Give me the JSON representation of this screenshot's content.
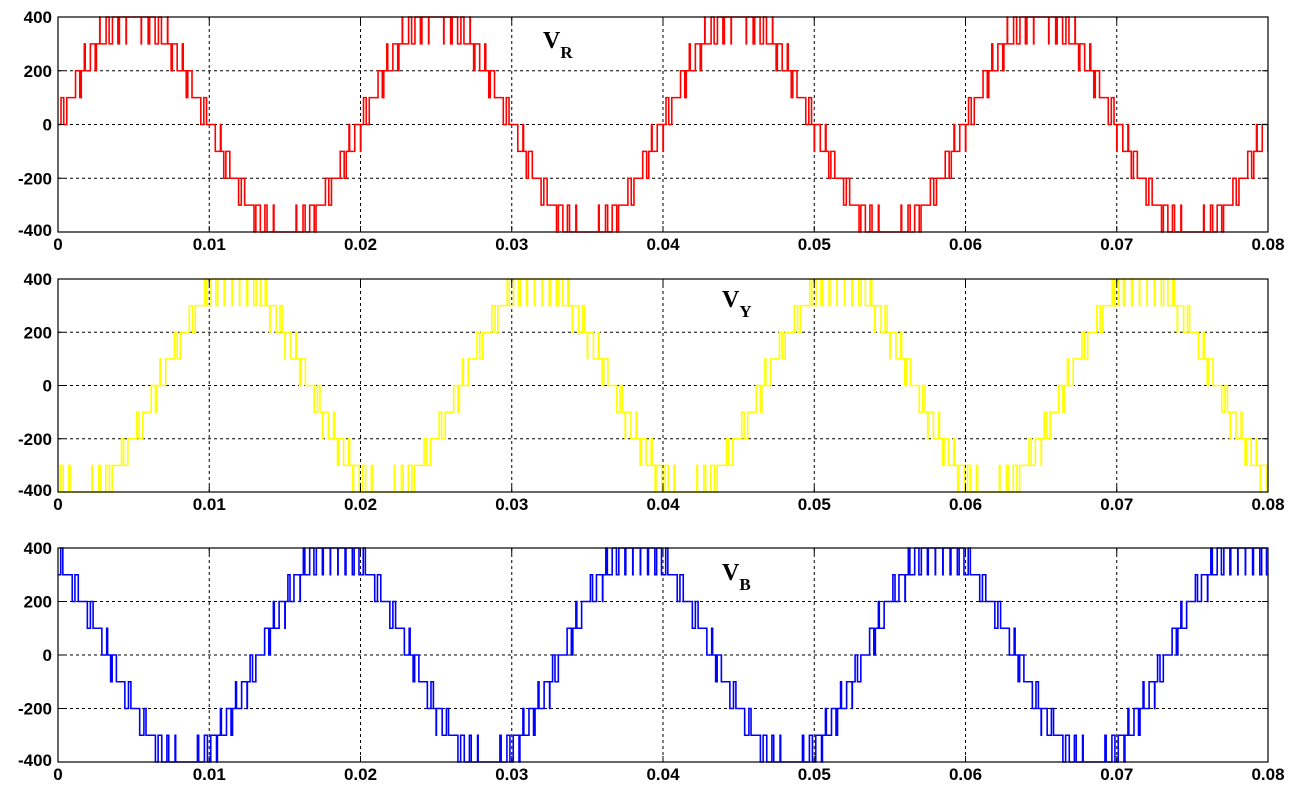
{
  "chart_data": [
    {
      "type": "line",
      "series_label": {
        "main": "V",
        "sub": "R"
      },
      "color": "#ff0000",
      "frequency_hz": 50,
      "phase_deg": 0,
      "step_size": 100,
      "amplitude": 400,
      "xlim": [
        0,
        0.08
      ],
      "ylim": [
        -400,
        400
      ],
      "xticks": [
        "0",
        "0.01",
        "0.02",
        "0.03",
        "0.04",
        "0.05",
        "0.06",
        "0.07",
        "0.08"
      ],
      "yticks": [
        "400",
        "200",
        "0",
        "-200",
        "-400"
      ],
      "grid": true
    },
    {
      "type": "line",
      "series_label": {
        "main": "V",
        "sub": "Y"
      },
      "color": "#ffff00",
      "frequency_hz": 50,
      "phase_deg": -120,
      "step_size": 100,
      "amplitude": 400,
      "xlim": [
        0,
        0.08
      ],
      "ylim": [
        -400,
        400
      ],
      "xticks": [
        "0",
        "0.01",
        "0.02",
        "0.03",
        "0.04",
        "0.05",
        "0.06",
        "0.07",
        "0.08"
      ],
      "yticks": [
        "400",
        "200",
        "0",
        "-200",
        "-400"
      ],
      "grid": true
    },
    {
      "type": "line",
      "series_label": {
        "main": "V",
        "sub": "B"
      },
      "color": "#0000ff",
      "frequency_hz": 50,
      "phase_deg": 120,
      "step_size": 100,
      "amplitude": 400,
      "xlim": [
        0,
        0.08
      ],
      "ylim": [
        -400,
        400
      ],
      "xticks": [
        "0",
        "0.01",
        "0.02",
        "0.03",
        "0.04",
        "0.05",
        "0.06",
        "0.07",
        "0.08"
      ],
      "yticks": [
        "400",
        "200",
        "0",
        "-200",
        "-400"
      ],
      "grid": true
    }
  ]
}
